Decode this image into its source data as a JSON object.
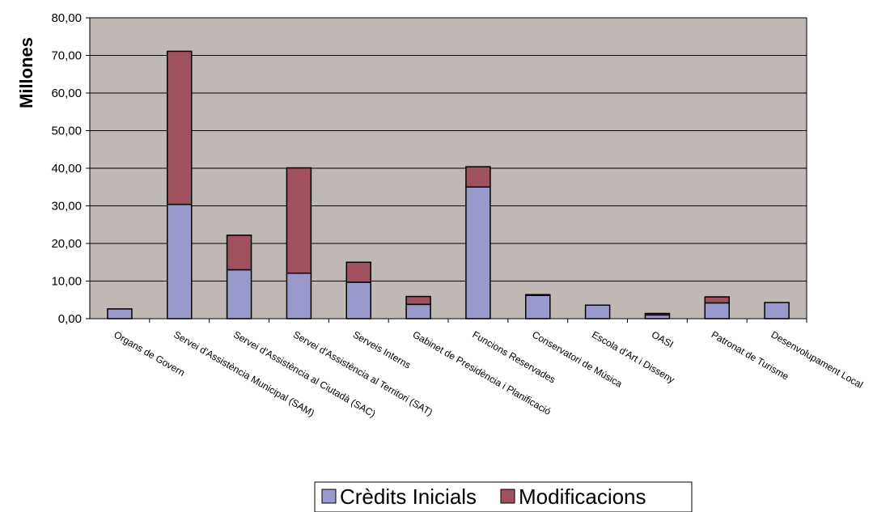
{
  "chart_data": {
    "type": "bar",
    "stacked": true,
    "title": "",
    "xlabel": "",
    "ylabel": "Millones",
    "ylim": [
      0,
      80
    ],
    "ytick_step": 10,
    "ytick_labels": [
      "0,00",
      "10,00",
      "20,00",
      "30,00",
      "40,00",
      "50,00",
      "60,00",
      "70,00",
      "80,00"
    ],
    "grid": true,
    "legend_position": "bottom",
    "plot_background": "#c0b8b4",
    "categories": [
      "Organs de Govern",
      "Servei d'Assistència Municipal (SAM)",
      "Servei d'Assistència al Ciutadà (SAC)",
      "Servei d'Assistència al Territori (SAT)",
      "Serveis Interns",
      "Gabinet de Presidència i Planificació",
      "Funcions Reservades",
      "Conservatori de Música",
      "Escola d'Art i Disseny",
      "OASI",
      "Patronat de Turisme",
      "Desenvolupament Local"
    ],
    "series": [
      {
        "name": "Crèdits Inicials",
        "color": "#9999cc",
        "values": [
          2.6,
          30.4,
          13.0,
          12.1,
          9.7,
          3.8,
          35.0,
          6.2,
          3.6,
          1.0,
          4.2,
          4.3
        ]
      },
      {
        "name": "Modificacions",
        "color": "#a0505e",
        "values": [
          0.0,
          40.7,
          9.2,
          28.0,
          5.3,
          2.1,
          5.4,
          0.2,
          0.0,
          0.4,
          1.6,
          0.0
        ]
      }
    ]
  }
}
